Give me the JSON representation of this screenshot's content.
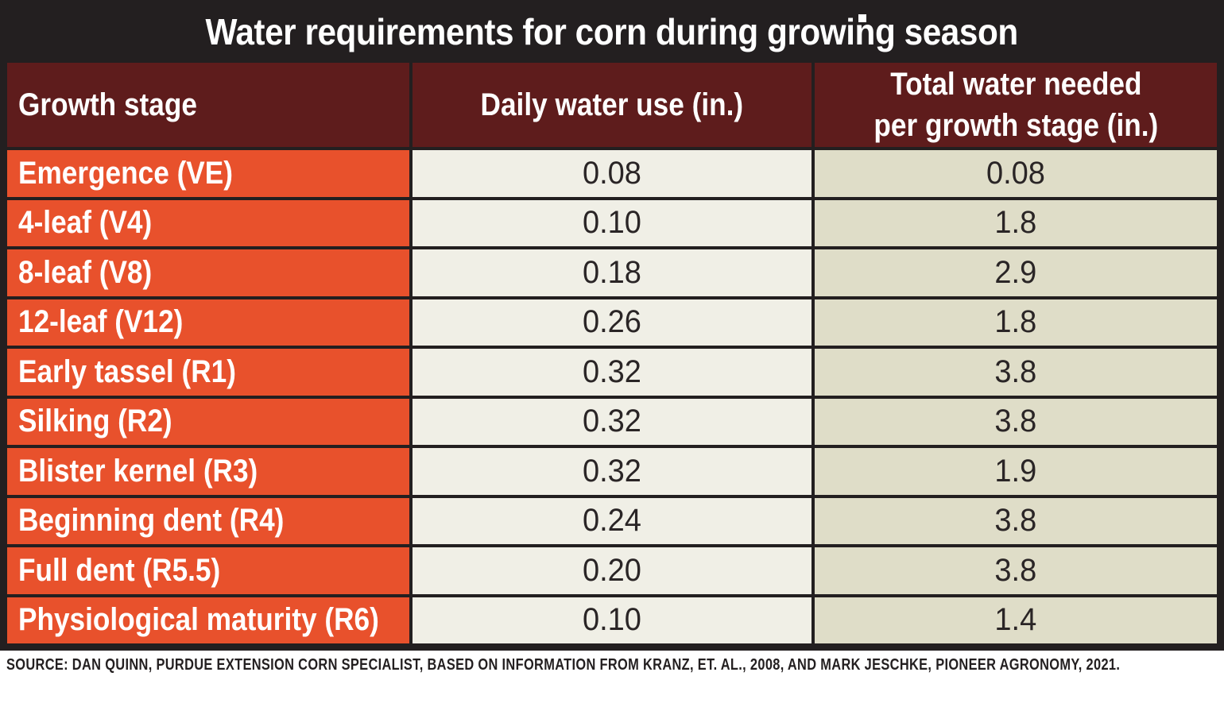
{
  "title": "Water requirements for corn during growing season",
  "columns": {
    "stage": "Growth stage",
    "daily": "Daily water use (in.)",
    "total": "Total water needed\nper growth stage (in.)"
  },
  "rows": [
    {
      "stage": "Emergence (VE)",
      "daily": "0.08",
      "total": "0.08"
    },
    {
      "stage": "4-leaf (V4)",
      "daily": "0.10",
      "total": "1.8"
    },
    {
      "stage": "8-leaf (V8)",
      "daily": "0.18",
      "total": "2.9"
    },
    {
      "stage": "12-leaf (V12)",
      "daily": "0.26",
      "total": "1.8"
    },
    {
      "stage": "Early tassel (R1)",
      "daily": "0.32",
      "total": "3.8"
    },
    {
      "stage": "Silking (R2)",
      "daily": "0.32",
      "total": "3.8"
    },
    {
      "stage": "Blister kernel (R3)",
      "daily": "0.32",
      "total": "1.9"
    },
    {
      "stage": "Beginning dent (R4)",
      "daily": "0.24",
      "total": "3.8"
    },
    {
      "stage": "Full dent (R5.5)",
      "daily": "0.20",
      "total": "3.8"
    },
    {
      "stage": "Physiological maturity (R6)",
      "daily": "0.10",
      "total": "1.4"
    }
  ],
  "source": "SOURCE: DAN QUINN, PURDUE EXTENSION CORN SPECIALIST, BASED ON INFORMATION FROM KRANZ, ET. AL., 2008, AND MARK JESCHKE, PIONEER AGRONOMY, 2021.",
  "colors": {
    "title_bar": "#231F20",
    "header_bg": "#5E1C1C",
    "stage_col_bg": "#E8512C",
    "daily_col_bg": "#F0EFE6",
    "total_col_bg": "#DFDDC8",
    "border": "#231F20",
    "text_light": "#FFFFFF",
    "text_dark": "#2A2526"
  },
  "chart_data": {
    "type": "table",
    "title": "Water requirements for corn during growing season",
    "columns": [
      "Growth stage",
      "Daily water use (in.)",
      "Total water needed per growth stage (in.)"
    ],
    "categories": [
      "Emergence (VE)",
      "4-leaf (V4)",
      "8-leaf (V8)",
      "12-leaf (V12)",
      "Early tassel (R1)",
      "Silking (R2)",
      "Blister kernel (R3)",
      "Beginning dent (R4)",
      "Full dent (R5.5)",
      "Physiological maturity (R6)"
    ],
    "series": [
      {
        "name": "Daily water use (in.)",
        "values": [
          0.08,
          0.1,
          0.18,
          0.26,
          0.32,
          0.32,
          0.32,
          0.24,
          0.2,
          0.1
        ]
      },
      {
        "name": "Total water needed per growth stage (in.)",
        "values": [
          0.08,
          1.8,
          2.9,
          1.8,
          3.8,
          3.8,
          1.9,
          3.8,
          3.8,
          1.4
        ]
      }
    ],
    "source": "SOURCE: DAN QUINN, PURDUE EXTENSION CORN SPECIALIST, BASED ON INFORMATION FROM KRANZ, ET. AL., 2008, AND MARK JESCHKE, PIONEER AGRONOMY, 2021."
  }
}
